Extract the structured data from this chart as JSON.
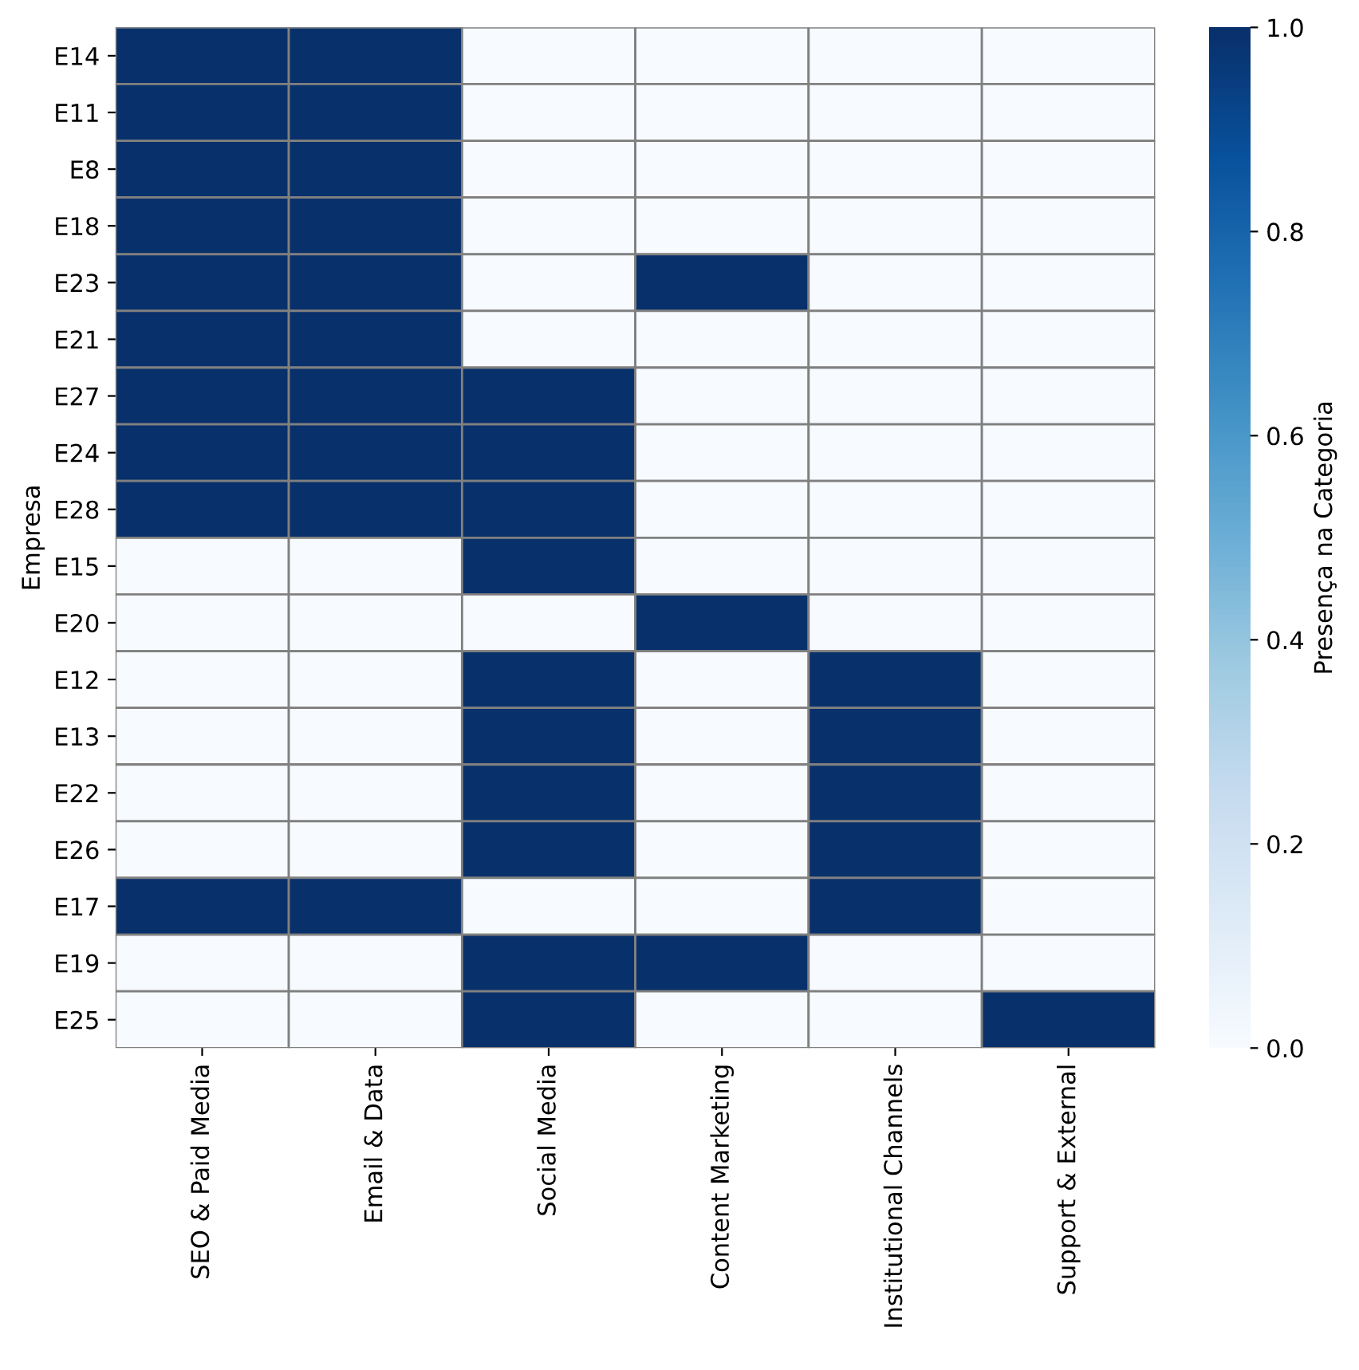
{
  "chart_data": {
    "type": "heatmap",
    "ylabel": "Empresa",
    "clabel": "Presença na Categoria",
    "categories": [
      "SEO & Paid Media",
      "Email & Data",
      "Social Media",
      "Content Marketing",
      "Institutional Channels",
      "Support & External"
    ],
    "y_categories": [
      "E14",
      "E11",
      "E8",
      "E18",
      "E23",
      "E21",
      "E27",
      "E24",
      "E28",
      "E15",
      "E20",
      "E12",
      "E13",
      "E22",
      "E26",
      "E17",
      "E19",
      "E25"
    ],
    "cells": [
      [
        1,
        1,
        0,
        0,
        0,
        0
      ],
      [
        1,
        1,
        0,
        0,
        0,
        0
      ],
      [
        1,
        1,
        0,
        0,
        0,
        0
      ],
      [
        1,
        1,
        0,
        0,
        0,
        0
      ],
      [
        1,
        1,
        0,
        1,
        0,
        0
      ],
      [
        1,
        1,
        0,
        0,
        0,
        0
      ],
      [
        1,
        1,
        1,
        0,
        0,
        0
      ],
      [
        1,
        1,
        1,
        0,
        0,
        0
      ],
      [
        1,
        1,
        1,
        0,
        0,
        0
      ],
      [
        0,
        0,
        1,
        0,
        0,
        0
      ],
      [
        0,
        0,
        0,
        1,
        0,
        0
      ],
      [
        0,
        0,
        1,
        0,
        1,
        0
      ],
      [
        0,
        0,
        1,
        0,
        1,
        0
      ],
      [
        0,
        0,
        1,
        0,
        1,
        0
      ],
      [
        0,
        0,
        1,
        0,
        1,
        0
      ],
      [
        1,
        1,
        0,
        0,
        1,
        0
      ],
      [
        0,
        0,
        1,
        1,
        0,
        0
      ],
      [
        0,
        0,
        1,
        0,
        0,
        1
      ]
    ],
    "clim": [
      0,
      1
    ],
    "cticks": [
      {
        "value": 0,
        "label": "0.0"
      },
      {
        "value": 0.2,
        "label": "0.2"
      },
      {
        "value": 0.4,
        "label": "0.4"
      },
      {
        "value": 0.6,
        "label": "0.6"
      },
      {
        "value": 0.8,
        "label": "0.8"
      },
      {
        "value": 1,
        "label": "1.0"
      }
    ]
  }
}
